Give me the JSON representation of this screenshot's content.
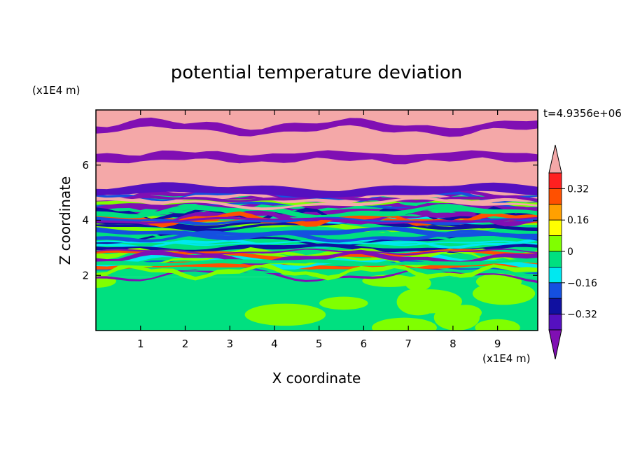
{
  "chart_data": {
    "type": "heatmap",
    "title": "potential temperature deviation",
    "xlabel": "X coordinate",
    "ylabel": "Z coordinate",
    "x_unit": "(x1E4 m)",
    "y_unit": "(x1E4 m)",
    "time_label": "t=4.9356e+06",
    "xlim": [
      0,
      9.9
    ],
    "ylim": [
      0,
      8
    ],
    "x_ticks": [
      1,
      2,
      3,
      4,
      5,
      6,
      7,
      8,
      9
    ],
    "y_ticks": [
      2,
      4,
      6
    ],
    "colorbar": {
      "levels": [
        -0.4,
        -0.32,
        -0.24,
        -0.16,
        -0.08,
        0,
        0.08,
        0.16,
        0.24,
        0.32,
        0.4
      ],
      "labeled_values": [
        "0.32",
        "0.16",
        "0",
        "−0.16",
        "−0.32"
      ],
      "colors": [
        "#800fb3",
        "#5510c0",
        "#1010a0",
        "#1550e0",
        "#00e8f0",
        "#00e080",
        "#80ff00",
        "#ffff00",
        "#ffa000",
        "#ff5000",
        "#ff2020",
        "#f4a8a8"
      ]
    },
    "layers": [
      {
        "z_range": [
          0,
          1.95
        ],
        "pattern": "green and yellow-green mixed region",
        "colors": [
          "#00e080",
          "#80ff00"
        ]
      },
      {
        "z_range": [
          1.95,
          4.9
        ],
        "pattern": "thin horizontally stretched filaments of all colors",
        "colors": [
          "#00e080",
          "#80ff00",
          "#00e8f0",
          "#1550e0",
          "#1010a0",
          "#ff5000",
          "#f4a8a8",
          "#800fb3"
        ]
      },
      {
        "z_range": [
          4.9,
          8.0
        ],
        "pattern": "alternating pink and purple bands",
        "colors": [
          "#f4a8a8",
          "#800fb3",
          "#5510c0"
        ]
      }
    ]
  }
}
